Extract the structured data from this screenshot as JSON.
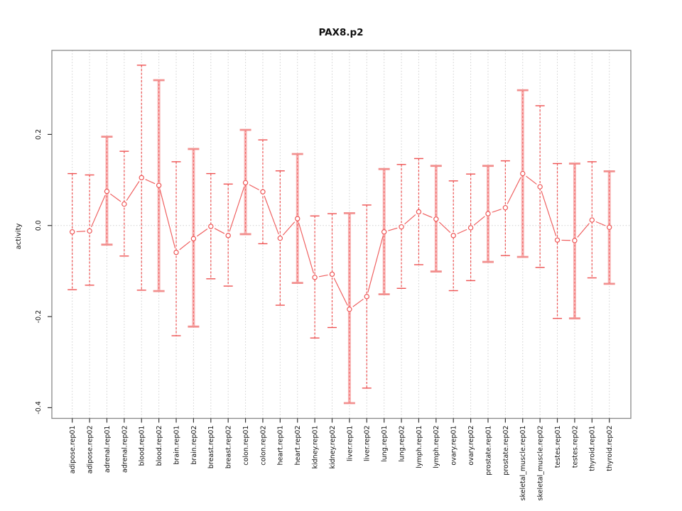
{
  "chart_data": {
    "type": "line",
    "subtype": "points-with-error-bars",
    "title": "PAX8.p2",
    "xlabel": "",
    "ylabel": "activity",
    "legend": "none",
    "grid": "vertical dotted gridline per category, dotted horizontal line at y=0",
    "ylim": [
      -0.4235,
      0.3845
    ],
    "yticks": [
      0.2,
      0.0,
      -0.2,
      -0.4
    ],
    "ytick_labels": [
      "0.2",
      "0.0",
      "-0.2",
      "-0.4"
    ],
    "categories": [
      "adipose.rep01",
      "adipose.rep02",
      "adrenal.rep01",
      "adrenal.rep02",
      "blood.rep01",
      "blood.rep02",
      "brain.rep01",
      "brain.rep02",
      "breast.rep01",
      "breast.rep02",
      "colon.rep01",
      "colon.rep02",
      "heart.rep01",
      "heart.rep02",
      "kidney.rep01",
      "kidney.rep02",
      "liver.rep01",
      "liver.rep02",
      "lung.rep01",
      "lung.rep02",
      "lymph.rep01",
      "lymph.rep02",
      "ovary.rep01",
      "ovary.rep02",
      "prostate.rep01",
      "prostate.rep02",
      "skeletal_muscle.rep01",
      "skeletal_muscle.rep02",
      "testes.rep01",
      "testes.rep02",
      "thyroid.rep01",
      "thyroid.rep02"
    ],
    "series": [
      {
        "name": "activity",
        "marker": "open-circle",
        "values": [
          -0.014,
          -0.012,
          0.075,
          0.047,
          0.105,
          0.088,
          -0.059,
          -0.029,
          -0.002,
          -0.022,
          0.094,
          0.074,
          -0.028,
          0.015,
          -0.114,
          -0.107,
          -0.184,
          -0.156,
          -0.014,
          -0.003,
          0.03,
          0.014,
          -0.022,
          -0.005,
          0.026,
          0.039,
          0.114,
          0.085,
          -0.032,
          -0.033,
          0.012,
          -0.004
        ],
        "err_hi": [
          0.114,
          0.111,
          0.195,
          0.163,
          0.352,
          0.319,
          0.14,
          0.168,
          0.114,
          0.091,
          0.21,
          0.188,
          0.12,
          0.157,
          0.021,
          0.026,
          0.027,
          0.045,
          0.124,
          0.134,
          0.147,
          0.131,
          0.098,
          0.113,
          0.131,
          0.142,
          0.297,
          0.263,
          0.136,
          0.136,
          0.14,
          0.119
        ],
        "err_lo": [
          -0.141,
          -0.131,
          -0.042,
          -0.067,
          -0.142,
          -0.144,
          -0.242,
          -0.222,
          -0.117,
          -0.133,
          -0.019,
          -0.04,
          -0.175,
          -0.126,
          -0.247,
          -0.224,
          -0.39,
          -0.357,
          -0.151,
          -0.138,
          -0.086,
          -0.101,
          -0.143,
          -0.121,
          -0.08,
          -0.066,
          -0.069,
          -0.092,
          -0.204,
          -0.204,
          -0.115,
          -0.128
        ],
        "stem_styles": [
          "dashed",
          "dashed",
          "band",
          "dashed",
          "dashed",
          "band",
          "dashed",
          "band",
          "dashed",
          "dashed",
          "band",
          "dashed",
          "dashed",
          "band",
          "dashed",
          "dashed",
          "band",
          "dashed",
          "band",
          "dashed",
          "dashed",
          "band",
          "dashed",
          "dashed",
          "band",
          "dashed",
          "band",
          "dashed",
          "dashed",
          "band",
          "dashed",
          "band"
        ]
      }
    ],
    "colors": {
      "point_line_red": "#ee5151",
      "connector_red": "#ef5c5c",
      "band_pink": "#f7abab",
      "band_cap_pink": "#f2908f",
      "grid_gray": "#cfcfcf",
      "plot_border_gray": "#888888",
      "tick_black": "#333333"
    }
  }
}
